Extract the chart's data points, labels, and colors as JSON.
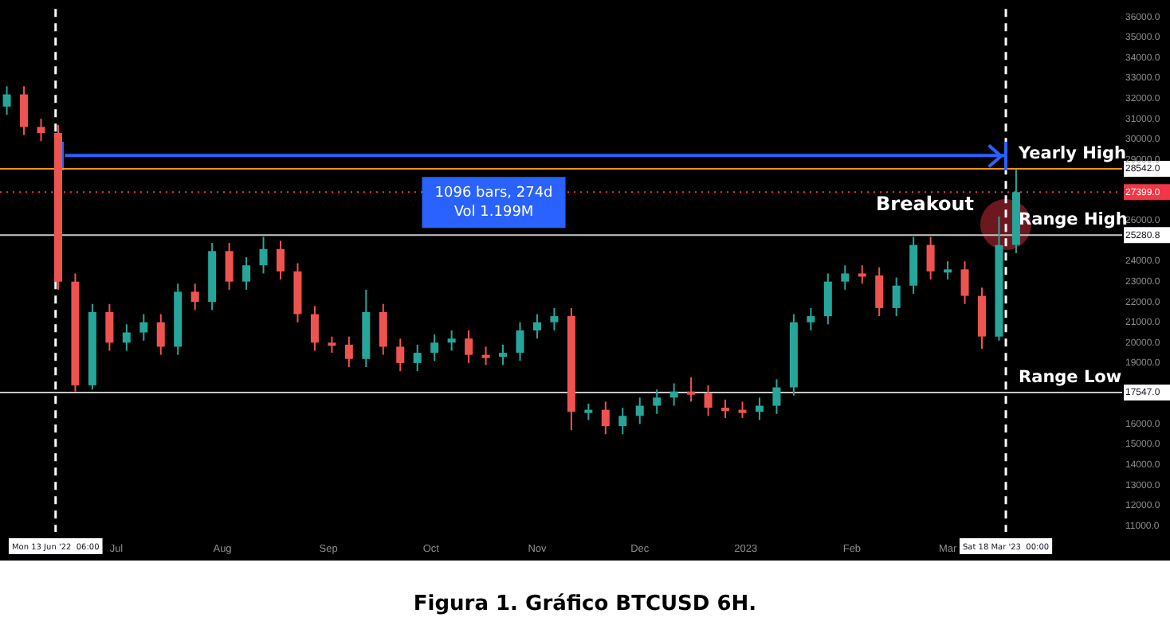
{
  "chart_data": {
    "type": "candlestick",
    "title": "Figura 1. Gráfico BTCUSD 6H.",
    "x": [
      "2022-05-30",
      "2022-06-04",
      "2022-06-09",
      "2022-06-14",
      "2022-06-19",
      "2022-06-24",
      "2022-06-29",
      "2022-07-04",
      "2022-07-09",
      "2022-07-14",
      "2022-07-19",
      "2022-07-24",
      "2022-07-29",
      "2022-08-03",
      "2022-08-08",
      "2022-08-13",
      "2022-08-18",
      "2022-08-23",
      "2022-08-28",
      "2022-09-02",
      "2022-09-07",
      "2022-09-12",
      "2022-09-17",
      "2022-09-22",
      "2022-09-27",
      "2022-10-02",
      "2022-10-07",
      "2022-10-12",
      "2022-10-17",
      "2022-10-22",
      "2022-10-27",
      "2022-11-01",
      "2022-11-06",
      "2022-11-11",
      "2022-11-16",
      "2022-11-21",
      "2022-11-26",
      "2022-12-01",
      "2022-12-06",
      "2022-12-11",
      "2022-12-16",
      "2022-12-21",
      "2022-12-26",
      "2022-12-31",
      "2023-01-05",
      "2023-01-10",
      "2023-01-15",
      "2023-01-20",
      "2023-01-25",
      "2023-01-30",
      "2023-02-04",
      "2023-02-09",
      "2023-02-14",
      "2023-02-19",
      "2023-02-24",
      "2023-03-01",
      "2023-03-06",
      "2023-03-11",
      "2023-03-16",
      "2023-03-21"
    ],
    "ohlc": [
      [
        31600,
        32600,
        31200,
        32200
      ],
      [
        32200,
        32600,
        30200,
        30600
      ],
      [
        30600,
        31000,
        29900,
        30300
      ],
      [
        30300,
        30700,
        22600,
        23000
      ],
      [
        23000,
        23400,
        17600,
        17900
      ],
      [
        17900,
        21900,
        17700,
        21500
      ],
      [
        21500,
        21900,
        19600,
        20000
      ],
      [
        20000,
        20900,
        19600,
        20500
      ],
      [
        20500,
        21400,
        20100,
        21000
      ],
      [
        21000,
        21400,
        19400,
        19800
      ],
      [
        19800,
        22900,
        19400,
        22500
      ],
      [
        22500,
        22900,
        21600,
        22000
      ],
      [
        22000,
        24900,
        21600,
        24500
      ],
      [
        24500,
        24900,
        22600,
        23000
      ],
      [
        23000,
        24200,
        22600,
        23800
      ],
      [
        23800,
        25200,
        23400,
        24600
      ],
      [
        24600,
        25000,
        23100,
        23500
      ],
      [
        23500,
        23900,
        21000,
        21400
      ],
      [
        21400,
        21800,
        19600,
        20000
      ],
      [
        20000,
        20300,
        19500,
        19900
      ],
      [
        19900,
        20300,
        18800,
        19200
      ],
      [
        19200,
        22600,
        18800,
        21500
      ],
      [
        21500,
        21900,
        19400,
        19800
      ],
      [
        19800,
        20200,
        18600,
        19000
      ],
      [
        19000,
        19900,
        18600,
        19500
      ],
      [
        19500,
        20400,
        19100,
        20000
      ],
      [
        20000,
        20600,
        19600,
        20200
      ],
      [
        20200,
        20600,
        19000,
        19400
      ],
      [
        19400,
        19800,
        18900,
        19300
      ],
      [
        19300,
        19900,
        18900,
        19500
      ],
      [
        19500,
        21000,
        19100,
        20600
      ],
      [
        20600,
        21400,
        20200,
        21000
      ],
      [
        21000,
        21700,
        20600,
        21300
      ],
      [
        21300,
        21700,
        15700,
        16600
      ],
      [
        16600,
        17000,
        16200,
        16700
      ],
      [
        16700,
        17100,
        15500,
        15900
      ],
      [
        15900,
        16800,
        15500,
        16400
      ],
      [
        16400,
        17300,
        16000,
        16900
      ],
      [
        16900,
        17700,
        16500,
        17300
      ],
      [
        17300,
        18000,
        16900,
        17600
      ],
      [
        17600,
        18300,
        17100,
        17500
      ],
      [
        17500,
        17900,
        16400,
        16800
      ],
      [
        16800,
        17200,
        16300,
        16700
      ],
      [
        16700,
        17100,
        16300,
        16600
      ],
      [
        16600,
        17300,
        16200,
        16900
      ],
      [
        16900,
        18200,
        16500,
        17800
      ],
      [
        17800,
        21400,
        17400,
        21000
      ],
      [
        21000,
        21700,
        20600,
        21300
      ],
      [
        21300,
        23400,
        20900,
        23000
      ],
      [
        23000,
        23800,
        22600,
        23400
      ],
      [
        23400,
        23800,
        22900,
        23300
      ],
      [
        23300,
        23700,
        21300,
        21700
      ],
      [
        21700,
        23200,
        21300,
        22800
      ],
      [
        22800,
        25200,
        22400,
        24800
      ],
      [
        24800,
        25200,
        23100,
        23500
      ],
      [
        23500,
        24000,
        23100,
        23600
      ],
      [
        23600,
        24000,
        21900,
        22300
      ],
      [
        22300,
        22700,
        19700,
        20300
      ],
      [
        20300,
        26200,
        20100,
        24800
      ],
      [
        24800,
        28542,
        24400,
        27399
      ]
    ],
    "xlim": [
      "2022-05-28",
      "2023-04-21"
    ],
    "ylim": [
      10700,
      36400
    ],
    "yticks": [
      {
        "value": 11000,
        "label": "11000.0"
      },
      {
        "value": 12000,
        "label": "12000.0"
      },
      {
        "value": 13000,
        "label": "13000.0"
      },
      {
        "value": 14000,
        "label": "14000.0"
      },
      {
        "value": 15000,
        "label": "15000.0"
      },
      {
        "value": 16000,
        "label": "16000.0"
      },
      {
        "value": 17547.0,
        "label": "17547.0"
      },
      {
        "value": 19000,
        "label": "19000.0"
      },
      {
        "value": 20000,
        "label": "20000.0"
      },
      {
        "value": 21000,
        "label": "21000.0"
      },
      {
        "value": 22000,
        "label": "22000.0"
      },
      {
        "value": 23000,
        "label": "23000.0"
      },
      {
        "value": 24000,
        "label": "24000.0"
      },
      {
        "value": 25280.8,
        "label": "25280.8"
      },
      {
        "value": 26000,
        "label": "26000.0"
      },
      {
        "value": 27399.0,
        "label": "27399.0"
      },
      {
        "value": 28542.0,
        "label": "28542.0"
      },
      {
        "value": 29000,
        "label": "29000.0"
      },
      {
        "value": 30000,
        "label": "30000.0"
      },
      {
        "value": 31000,
        "label": "31000.0"
      },
      {
        "value": 32000,
        "label": "32000.0"
      },
      {
        "value": 33000,
        "label": "33000.0"
      },
      {
        "value": 34000,
        "label": "34000.0"
      },
      {
        "value": 35000,
        "label": "35000.0"
      },
      {
        "value": 36000,
        "label": "36000.0"
      }
    ],
    "xticks": [
      {
        "value": "2022-07-01",
        "label": "Jul"
      },
      {
        "value": "2022-08-01",
        "label": "Aug"
      },
      {
        "value": "2022-09-01",
        "label": "Sep"
      },
      {
        "value": "2022-10-01",
        "label": "Oct"
      },
      {
        "value": "2022-11-01",
        "label": "Nov"
      },
      {
        "value": "2022-12-01",
        "label": "Dec"
      },
      {
        "value": "2023-01-01",
        "label": "2023"
      },
      {
        "value": "2023-02-01",
        "label": "Feb"
      },
      {
        "value": "2023-03-01",
        "label": "Mar"
      }
    ],
    "legend": false,
    "series": [
      {
        "type": "line",
        "x": [
          "2022-06-16",
          "2023-03-18T00:00"
        ],
        "values": [
          29200,
          29200
        ],
        "color": "#2962ff"
      }
    ],
    "ref_lines": [
      {
        "axis": "y",
        "value": 28542.0,
        "label": "Yearly High",
        "color": "#f7931a"
      },
      {
        "axis": "y",
        "value": 27399.0,
        "label": null,
        "color": "#f23645",
        "line_style": "dotted"
      },
      {
        "axis": "y",
        "value": 25280.8,
        "label": "Range High",
        "color": "#c8c8c8"
      },
      {
        "axis": "y",
        "value": 17547.0,
        "label": "Range Low",
        "color": "#c8c8c8"
      },
      {
        "axis": "x",
        "value": "2022-06-13T06:00",
        "label": "Mon 13 Jun '22  06:00",
        "color": "#ffffff",
        "line_style": "dashed"
      },
      {
        "axis": "x",
        "value": "2023-03-18T00:00",
        "label": "Sat 18 Mar '23  00:00",
        "color": "#ffffff",
        "line_style": "dashed"
      }
    ],
    "annotations": [
      "1096 bars, 274d\nVol 1.199M",
      {
        "text": "Breakout",
        "x": "2023-03-18",
        "y": 25800
      }
    ]
  }
}
